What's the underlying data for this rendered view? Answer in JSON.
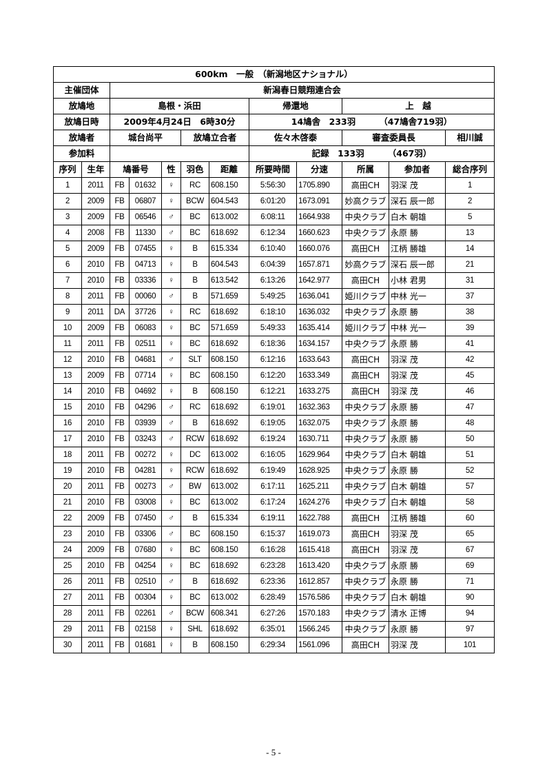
{
  "title": "600km　一般　（新潟地区ナショナル）",
  "info": {
    "organizer_label": "主催団体",
    "organizer": "新潟春日競翔連合会",
    "release_place_label": "放鳩地",
    "release_place": "島根・浜田",
    "return_place_label": "帰還地",
    "return_place": "上　越",
    "release_datetime_label": "放鳩日時",
    "release_datetime": "2009年4月24日　6時30分",
    "entries": "14鳩舎　233羽",
    "entries_total": "（47鳩舎719羽）",
    "releaser_label": "放鳩者",
    "releaser": "城台尚平",
    "witness_label": "放鳩立合者",
    "witness": "佐々木啓泰",
    "judge_label": "審査委員長",
    "judge": "相川誠",
    "fee_label": "参加料",
    "fee": "",
    "record": "記録　133羽",
    "record_total": "（467羽）"
  },
  "columns": [
    "序列",
    "生年",
    "鳩番号",
    "性",
    "羽色",
    "距離",
    "所要時間",
    "分速",
    "所属",
    "参加者",
    "総合序列"
  ],
  "rows": [
    [
      "1",
      "2011",
      "FB",
      "01632",
      "♀",
      "RC",
      "608.150",
      "5:56:30",
      "1705.890",
      "高田CH",
      "羽深 茂",
      "1"
    ],
    [
      "2",
      "2009",
      "FB",
      "06807",
      "♀",
      "BCW",
      "604.543",
      "6:01:20",
      "1673.091",
      "妙高クラブ",
      "深石 辰一郎",
      "2"
    ],
    [
      "3",
      "2009",
      "FB",
      "06546",
      "♂",
      "BC",
      "613.002",
      "6:08:11",
      "1664.938",
      "中央クラブ",
      "白木 朝雄",
      "5"
    ],
    [
      "4",
      "2008",
      "FB",
      "11330",
      "♂",
      "BC",
      "618.692",
      "6:12:34",
      "1660.623",
      "中央クラブ",
      "永原 勝",
      "13"
    ],
    [
      "5",
      "2009",
      "FB",
      "07455",
      "♀",
      "B",
      "615.334",
      "6:10:40",
      "1660.076",
      "高田CH",
      "江柄 勝雄",
      "14"
    ],
    [
      "6",
      "2010",
      "FB",
      "04713",
      "♀",
      "B",
      "604.543",
      "6:04:39",
      "1657.871",
      "妙高クラブ",
      "深石 辰一郎",
      "21"
    ],
    [
      "7",
      "2010",
      "FB",
      "03336",
      "♀",
      "B",
      "613.542",
      "6:13:26",
      "1642.977",
      "高田CH",
      "小林 君男",
      "31"
    ],
    [
      "8",
      "2011",
      "FB",
      "00060",
      "♂",
      "B",
      "571.659",
      "5:49:25",
      "1636.041",
      "姫川クラブ",
      "中林 光一",
      "37"
    ],
    [
      "9",
      "2011",
      "DA",
      "37726",
      "♀",
      "RC",
      "618.692",
      "6:18:10",
      "1636.032",
      "中央クラブ",
      "永原 勝",
      "38"
    ],
    [
      "10",
      "2009",
      "FB",
      "06083",
      "♀",
      "BC",
      "571.659",
      "5:49:33",
      "1635.414",
      "姫川クラブ",
      "中林 光一",
      "39"
    ],
    [
      "11",
      "2011",
      "FB",
      "02511",
      "♀",
      "BC",
      "618.692",
      "6:18:36",
      "1634.157",
      "中央クラブ",
      "永原 勝",
      "41"
    ],
    [
      "12",
      "2010",
      "FB",
      "04681",
      "♂",
      "SLT",
      "608.150",
      "6:12:16",
      "1633.643",
      "高田CH",
      "羽深 茂",
      "42"
    ],
    [
      "13",
      "2009",
      "FB",
      "07714",
      "♀",
      "BC",
      "608.150",
      "6:12:20",
      "1633.349",
      "高田CH",
      "羽深 茂",
      "45"
    ],
    [
      "14",
      "2010",
      "FB",
      "04692",
      "♀",
      "B",
      "608.150",
      "6:12:21",
      "1633.275",
      "高田CH",
      "羽深 茂",
      "46"
    ],
    [
      "15",
      "2010",
      "FB",
      "04296",
      "♂",
      "RC",
      "618.692",
      "6:19:01",
      "1632.363",
      "中央クラブ",
      "永原 勝",
      "47"
    ],
    [
      "16",
      "2010",
      "FB",
      "03939",
      "♂",
      "B",
      "618.692",
      "6:19:05",
      "1632.075",
      "中央クラブ",
      "永原 勝",
      "48"
    ],
    [
      "17",
      "2010",
      "FB",
      "03243",
      "♂",
      "RCW",
      "618.692",
      "6:19:24",
      "1630.711",
      "中央クラブ",
      "永原 勝",
      "50"
    ],
    [
      "18",
      "2011",
      "FB",
      "00272",
      "♀",
      "DC",
      "613.002",
      "6:16:05",
      "1629.964",
      "中央クラブ",
      "白木 朝雄",
      "51"
    ],
    [
      "19",
      "2010",
      "FB",
      "04281",
      "♀",
      "RCW",
      "618.692",
      "6:19:49",
      "1628.925",
      "中央クラブ",
      "永原 勝",
      "52"
    ],
    [
      "20",
      "2011",
      "FB",
      "00273",
      "♂",
      "BW",
      "613.002",
      "6:17:11",
      "1625.211",
      "中央クラブ",
      "白木 朝雄",
      "57"
    ],
    [
      "21",
      "2010",
      "FB",
      "03008",
      "♀",
      "BC",
      "613.002",
      "6:17:24",
      "1624.276",
      "中央クラブ",
      "白木 朝雄",
      "58"
    ],
    [
      "22",
      "2009",
      "FB",
      "07450",
      "♂",
      "B",
      "615.334",
      "6:19:11",
      "1622.788",
      "高田CH",
      "江柄 勝雄",
      "60"
    ],
    [
      "23",
      "2010",
      "FB",
      "03306",
      "♂",
      "BC",
      "608.150",
      "6:15:37",
      "1619.073",
      "高田CH",
      "羽深 茂",
      "65"
    ],
    [
      "24",
      "2009",
      "FB",
      "07680",
      "♀",
      "BC",
      "608.150",
      "6:16:28",
      "1615.418",
      "高田CH",
      "羽深 茂",
      "67"
    ],
    [
      "25",
      "2010",
      "FB",
      "04254",
      "♀",
      "BC",
      "618.692",
      "6:23:28",
      "1613.420",
      "中央クラブ",
      "永原 勝",
      "69"
    ],
    [
      "26",
      "2011",
      "FB",
      "02510",
      "♂",
      "B",
      "618.692",
      "6:23:36",
      "1612.857",
      "中央クラブ",
      "永原 勝",
      "71"
    ],
    [
      "27",
      "2011",
      "FB",
      "00304",
      "♀",
      "BC",
      "613.002",
      "6:28:49",
      "1576.586",
      "中央クラブ",
      "白木 朝雄",
      "90"
    ],
    [
      "28",
      "2011",
      "FB",
      "02261",
      "♂",
      "BCW",
      "608.341",
      "6:27:26",
      "1570.183",
      "中央クラブ",
      "清水 正博",
      "94"
    ],
    [
      "29",
      "2011",
      "FB",
      "02158",
      "♀",
      "SHL",
      "618.692",
      "6:35:01",
      "1566.245",
      "中央クラブ",
      "永原 勝",
      "97"
    ],
    [
      "30",
      "2011",
      "FB",
      "01681",
      "♀",
      "B",
      "608.150",
      "6:29:34",
      "1561.096",
      "高田CH",
      "羽深 茂",
      "101"
    ]
  ],
  "footer": "- 5 -"
}
